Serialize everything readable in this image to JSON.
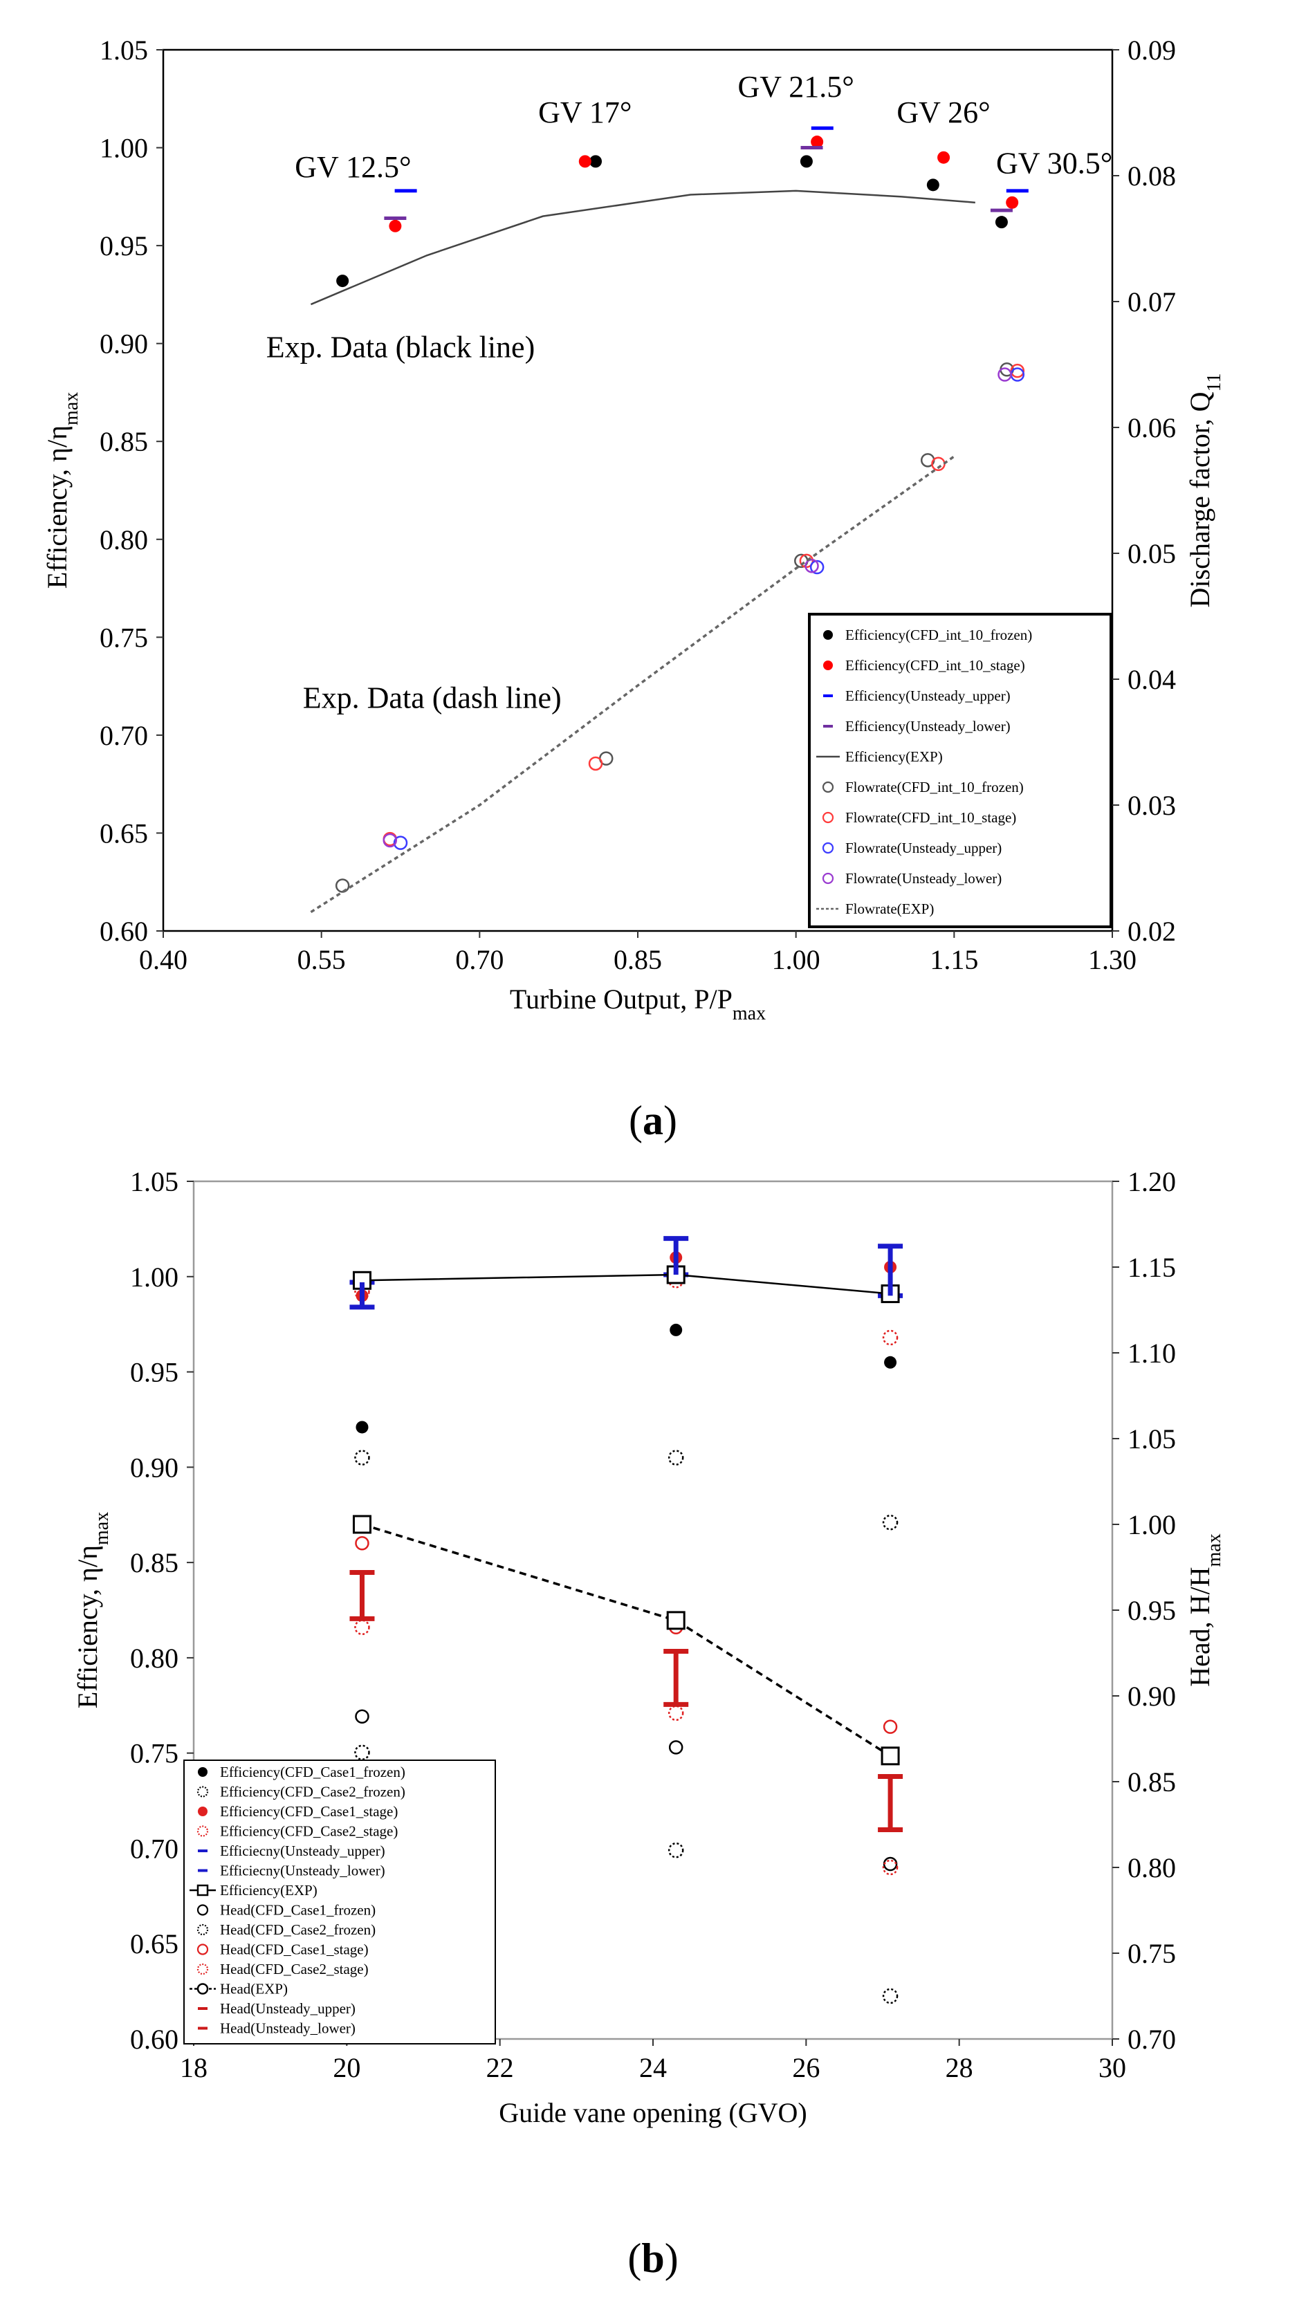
{
  "chart_data": [
    {
      "type": "scatter",
      "panel_label": "a",
      "xlabel": "Turbine Output, P/P",
      "xlabel_sub": "max",
      "ylabel": "Efficiency, η/η",
      "ylabel_sub": "max",
      "y2label": "Discharge factor, Q",
      "y2label_sub": "11",
      "xlim": [
        0.4,
        1.3
      ],
      "ylim": [
        0.6,
        1.05
      ],
      "y2lim": [
        0.02,
        0.09
      ],
      "xticks": [
        "0.40",
        "0.55",
        "0.70",
        "0.85",
        "1.00",
        "1.15",
        "1.30"
      ],
      "yticks": [
        "0.60",
        "0.65",
        "0.70",
        "0.75",
        "0.80",
        "0.85",
        "0.90",
        "0.95",
        "1.00",
        "1.05"
      ],
      "y2ticks": [
        "0.02",
        "0.03",
        "0.04",
        "0.05",
        "0.06",
        "0.07",
        "0.08",
        "0.09"
      ],
      "annotations": [
        {
          "text": "GV 12.5°",
          "x": 0.58,
          "y": 0.985
        },
        {
          "text": "GV 17°",
          "x": 0.8,
          "y": 1.013
        },
        {
          "text": "GV 21.5°",
          "x": 1.0,
          "y": 1.026
        },
        {
          "text": "GV 26°",
          "x": 1.14,
          "y": 1.013
        },
        {
          "text": "GV 30.5°",
          "x": 1.245,
          "y": 0.987
        },
        {
          "text": "Exp. Data (black line)",
          "x": 0.625,
          "y": 0.893
        },
        {
          "text": "Exp. Data (dash line)",
          "x": 0.655,
          "y": 0.714
        }
      ],
      "legend": [
        "Efficiency(CFD_int_10_frozen)",
        "Efficiency(CFD_int_10_stage)",
        "Efficiency(Unsteady_upper)",
        "Efficiency(Unsteady_lower)",
        "Efficiency(EXP)",
        "Flowrate(CFD_int_10_frozen)",
        "Flowrate(CFD_int_10_stage)",
        "Flowrate(Unsteady_upper)",
        "Flowrate(Unsteady_lower)",
        "Flowrate(EXP)"
      ],
      "legend_position": "bottom-right",
      "series": [
        {
          "name": "Efficiency(CFD_int_10_frozen)",
          "axis": "left",
          "marker": "dot",
          "color": "#000000",
          "x": [
            0.57,
            0.81,
            1.01,
            1.13,
            1.195
          ],
          "y": [
            0.932,
            0.993,
            0.993,
            0.981,
            0.962
          ]
        },
        {
          "name": "Efficiency(CFD_int_10_stage)",
          "axis": "left",
          "marker": "dot",
          "color": "#ff0000",
          "x": [
            0.62,
            0.8,
            1.02,
            1.14,
            1.205
          ],
          "y": [
            0.96,
            0.993,
            1.003,
            0.995,
            0.972
          ]
        },
        {
          "name": "Efficiency(Unsteady_upper)",
          "axis": "left",
          "marker": "dash",
          "color": "#0000ff",
          "x": [
            0.63,
            1.025,
            1.21
          ],
          "y": [
            0.978,
            1.01,
            0.978
          ]
        },
        {
          "name": "Efficiency(Unsteady_lower)",
          "axis": "left",
          "marker": "dash",
          "color": "#7030a0",
          "x": [
            0.62,
            1.015,
            1.195
          ],
          "y": [
            0.964,
            1.0,
            0.968
          ]
        },
        {
          "name": "Efficiency(EXP)",
          "axis": "left",
          "marker": "line",
          "color": "#444444",
          "x": [
            0.54,
            0.65,
            0.76,
            0.9,
            1.0,
            1.1,
            1.17
          ],
          "y": [
            0.92,
            0.945,
            0.965,
            0.976,
            0.978,
            0.975,
            0.972
          ]
        },
        {
          "name": "Flowrate(CFD_int_10_frozen)",
          "axis": "right",
          "marker": "ring",
          "color": "#555555",
          "x": [
            0.57,
            0.82,
            1.005,
            1.125,
            1.2
          ],
          "y": [
            0.0236,
            0.0337,
            0.0494,
            0.0574,
            0.0646
          ]
        },
        {
          "name": "Flowrate(CFD_int_10_stage)",
          "axis": "right",
          "marker": "ring",
          "color": "#ff3b3b",
          "x": [
            0.615,
            0.81,
            1.01,
            1.135,
            1.21
          ],
          "y": [
            0.0273,
            0.0333,
            0.0494,
            0.0571,
            0.0645
          ]
        },
        {
          "name": "Flowrate(Unsteady_upper)",
          "axis": "right",
          "marker": "ring",
          "color": "#3b3bff",
          "x": [
            0.625,
            1.02,
            1.21
          ],
          "y": [
            0.027,
            0.0489,
            0.0642
          ]
        },
        {
          "name": "Flowrate(Unsteady_lower)",
          "axis": "right",
          "marker": "ring",
          "color": "#9a3bd0",
          "x": [
            0.615,
            1.015,
            1.198
          ],
          "y": [
            0.0272,
            0.049,
            0.0642
          ]
        },
        {
          "name": "Flowrate(EXP)",
          "axis": "right",
          "marker": "dashed-line",
          "color": "#666666",
          "x": [
            0.54,
            0.7,
            0.85,
            1.0,
            1.15
          ],
          "y": [
            0.0215,
            0.03,
            0.0395,
            0.0488,
            0.0577
          ]
        }
      ]
    },
    {
      "type": "scatter",
      "panel_label": "b",
      "xlabel": "Guide vane opening (GVO)",
      "ylabel": "Efficiency, η/η",
      "ylabel_sub": "max",
      "y2label": "Head, H/H",
      "y2label_sub": "max",
      "xlim": [
        18,
        30
      ],
      "ylim": [
        0.6,
        1.05
      ],
      "y2lim": [
        0.7,
        1.2
      ],
      "xticks": [
        "18",
        "20",
        "22",
        "24",
        "26",
        "28",
        "30"
      ],
      "yticks": [
        "0.60",
        "0.65",
        "0.70",
        "0.75",
        "0.80",
        "0.85",
        "0.90",
        "0.95",
        "1.00",
        "1.05"
      ],
      "y2ticks": [
        "0.70",
        "0.75",
        "0.80",
        "0.85",
        "0.90",
        "0.95",
        "1.00",
        "1.05",
        "1.10",
        "1.15",
        "1.20"
      ],
      "legend": [
        "Efficiency(CFD_Case1_frozen)",
        "Efficiency(CFD_Case2_frozen)",
        "Efficiency(CFD_Case1_stage)",
        "Efficiency(CFD_Case2_stage)",
        "Efficiecny(Unsteady_upper)",
        "Efficiecny(Unsteady_lower)",
        "Efficiency(EXP)",
        "Head(CFD_Case1_frozen)",
        "Head(CFD_Case2_frozen)",
        "Head(CFD_Case1_stage)",
        "Head(CFD_Case2_stage)",
        "Head(EXP)",
        "Head(Unsteady_upper)",
        "Head(Unsteady_lower)"
      ],
      "legend_position": "bottom-left",
      "series": [
        {
          "name": "Efficiency(CFD_Case1_frozen)",
          "axis": "left",
          "marker": "dot",
          "color": "#000000",
          "x": [
            20.2,
            24.3,
            27.1
          ],
          "y": [
            0.921,
            0.972,
            0.955
          ]
        },
        {
          "name": "Efficiency(CFD_Case2_frozen)",
          "axis": "left",
          "marker": "dotted-ring",
          "color": "#000000",
          "x": [
            20.2,
            24.3,
            27.1
          ],
          "y": [
            0.905,
            0.905,
            0.871
          ]
        },
        {
          "name": "Efficiency(CFD_Case1_stage)",
          "axis": "left",
          "marker": "dot",
          "color": "#e02020",
          "x": [
            20.2,
            24.3,
            27.1
          ],
          "y": [
            0.99,
            1.01,
            1.005
          ]
        },
        {
          "name": "Efficiency(CFD_Case2_stage)",
          "axis": "left",
          "marker": "dotted-ring",
          "color": "#e02020",
          "x": [
            20.2,
            24.3,
            27.1
          ],
          "y": [
            0.992,
            0.998,
            0.968
          ]
        },
        {
          "name": "Efficiecny(Unsteady_upper)",
          "axis": "left",
          "marker": "bar-cap",
          "color": "#1a1acc",
          "x": [
            20.2,
            24.3,
            27.1
          ],
          "y": [
            0.997,
            1.02,
            1.016
          ]
        },
        {
          "name": "Efficiecny(Unsteady_lower)",
          "axis": "left",
          "marker": "bar-cap",
          "color": "#1a1acc",
          "x": [
            20.2,
            24.3,
            27.1
          ],
          "y": [
            0.984,
            1.001,
            0.99
          ]
        },
        {
          "name": "Efficiency(EXP)",
          "axis": "left",
          "marker": "square-line",
          "color": "#000000",
          "x": [
            20.2,
            24.3,
            27.1
          ],
          "y": [
            0.998,
            1.001,
            0.991
          ]
        },
        {
          "name": "Head(CFD_Case1_frozen)",
          "axis": "right",
          "marker": "ring",
          "color": "#000000",
          "x": [
            20.2,
            24.3,
            27.1
          ],
          "y": [
            0.888,
            0.87,
            0.802
          ]
        },
        {
          "name": "Head(CFD_Case2_frozen)",
          "axis": "right",
          "marker": "dotted-ring",
          "color": "#000000",
          "x": [
            20.2,
            24.3,
            27.1
          ],
          "y": [
            0.867,
            0.81,
            0.725
          ]
        },
        {
          "name": "Head(CFD_Case1_stage)",
          "axis": "right",
          "marker": "ring",
          "color": "#e02020",
          "x": [
            20.2,
            24.3,
            27.1
          ],
          "y": [
            0.989,
            0.94,
            0.882
          ]
        },
        {
          "name": "Head(CFD_Case2_stage)",
          "axis": "right",
          "marker": "dotted-ring",
          "color": "#e02020",
          "x": [
            20.2,
            24.3,
            27.1
          ],
          "y": [
            0.94,
            0.89,
            0.8
          ]
        },
        {
          "name": "Head(EXP)",
          "axis": "right",
          "marker": "square-dashed-line",
          "color": "#000000",
          "x": [
            20.2,
            24.3,
            27.1
          ],
          "y": [
            1.0,
            0.944,
            0.865
          ]
        },
        {
          "name": "Head(Unsteady_upper)",
          "axis": "right",
          "marker": "bar-cap",
          "color": "#cc1a1a",
          "x": [
            20.2,
            24.3,
            27.1
          ],
          "y": [
            0.972,
            0.926,
            0.853
          ]
        },
        {
          "name": "Head(Unsteady_lower)",
          "axis": "right",
          "marker": "bar-cap",
          "color": "#cc1a1a",
          "x": [
            20.2,
            24.3,
            27.1
          ],
          "y": [
            0.945,
            0.895,
            0.822
          ]
        }
      ]
    }
  ]
}
